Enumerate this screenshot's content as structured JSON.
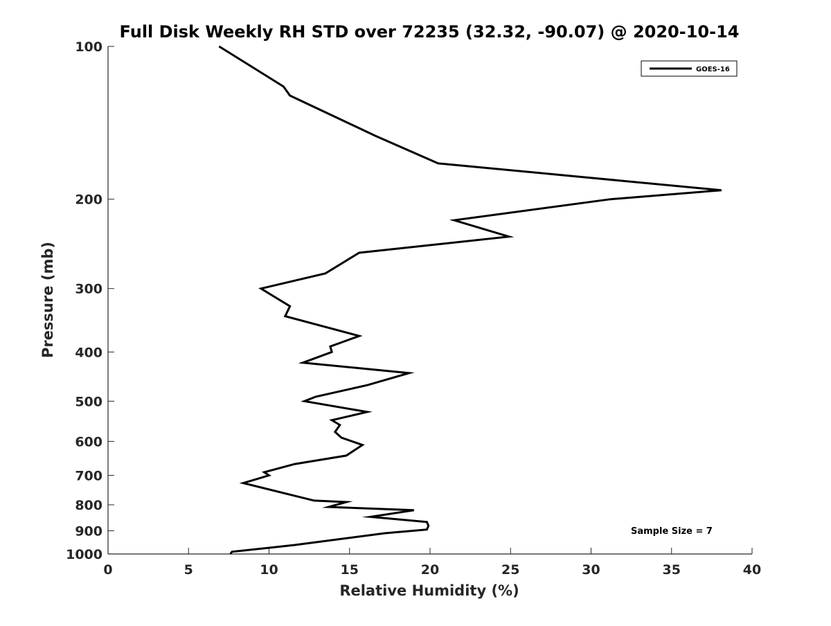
{
  "chart_data": {
    "type": "line",
    "title": "Full Disk Weekly RH STD over 72235 (32.32, -90.07) @ 2020-10-14",
    "xlabel": "Relative Humidity (%)",
    "ylabel": "Pressure (mb)",
    "xlim": [
      0,
      40
    ],
    "ylim": [
      1000,
      100
    ],
    "yscale": "log",
    "grid": false,
    "legend_position": "top-right",
    "x_ticks": [
      0,
      5,
      10,
      15,
      20,
      25,
      30,
      35,
      40
    ],
    "x_tick_labels": [
      "0",
      "5",
      "10",
      "15",
      "20",
      "25",
      "30",
      "35",
      "40"
    ],
    "y_ticks": [
      100,
      200,
      300,
      400,
      500,
      600,
      700,
      800,
      900,
      1000
    ],
    "y_tick_labels": [
      "100",
      "200",
      "300",
      "400",
      "500",
      "600",
      "700",
      "800",
      "900",
      "1000"
    ],
    "series": [
      {
        "name": "GOES-16",
        "color": "#000000",
        "x": [
          6.9,
          10.9,
          11.3,
          16.6,
          20.5,
          38.1,
          31.2,
          21.5,
          24.9,
          15.6,
          13.5,
          9.5,
          11.3,
          11.0,
          15.6,
          13.8,
          13.9,
          12.1,
          18.7,
          16.1,
          12.9,
          12.2,
          16.1,
          13.9,
          14.4,
          14.1,
          14.5,
          15.8,
          14.8,
          11.6,
          9.7,
          10.0,
          8.4,
          12.8,
          14.8,
          13.7,
          19.0,
          16.3,
          19.8,
          19.9,
          19.8,
          17.2,
          11.6,
          7.7,
          7.6
        ],
        "y": [
          100,
          120,
          125,
          150,
          170,
          192,
          200,
          220,
          237,
          255,
          280,
          300,
          325,
          340,
          372,
          390,
          400,
          420,
          440,
          465,
          490,
          500,
          525,
          545,
          557,
          575,
          590,
          610,
          640,
          665,
          690,
          700,
          725,
          785,
          790,
          808,
          820,
          845,
          865,
          880,
          895,
          910,
          960,
          990,
          1000
        ]
      }
    ],
    "annotations": [
      "Sample Size = 7"
    ]
  }
}
